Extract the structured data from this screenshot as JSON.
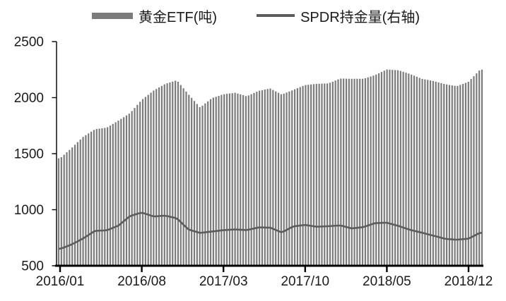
{
  "chart_data": {
    "type": "bar",
    "combo": "bar+line",
    "title": "",
    "legend_position": "top",
    "grid": false,
    "y_axis": {
      "side": "left",
      "min": 500,
      "max": 2500,
      "ticks": [
        2500,
        2000,
        1500,
        1000,
        500
      ]
    },
    "x_axis": {
      "tick_labels": [
        "2016/01",
        "2016/08",
        "2017/03",
        "2017/10",
        "2018/05",
        "2018/12"
      ],
      "tick_month_positions": [
        0,
        7,
        14,
        21,
        28,
        35
      ]
    },
    "months": [
      "2016/01",
      "2016/02",
      "2016/03",
      "2016/04",
      "2016/05",
      "2016/06",
      "2016/07",
      "2016/08",
      "2016/09",
      "2016/10",
      "2016/11",
      "2016/12",
      "2017/01",
      "2017/02",
      "2017/03",
      "2017/04",
      "2017/05",
      "2017/06",
      "2017/07",
      "2017/08",
      "2017/09",
      "2017/10",
      "2017/11",
      "2017/12",
      "2018/01",
      "2018/02",
      "2018/03",
      "2018/04",
      "2018/05",
      "2018/06",
      "2018/07",
      "2018/08",
      "2018/09",
      "2018/10",
      "2018/11",
      "2018/12",
      "2019/01"
    ],
    "series": [
      {
        "name": "黄金ETF(吨)",
        "type": "bar",
        "axis": "left",
        "values": [
          1458,
          1552,
          1652,
          1718,
          1732,
          1795,
          1862,
          1980,
          2062,
          2122,
          2155,
          2030,
          1912,
          1995,
          2030,
          2043,
          2012,
          2060,
          2082,
          2028,
          2070,
          2112,
          2123,
          2127,
          2170,
          2168,
          2168,
          2202,
          2251,
          2244,
          2210,
          2168,
          2148,
          2120,
          2102,
          2142,
          2250
        ]
      },
      {
        "name": "SPDR持金量(右轴)",
        "type": "line",
        "axis": "right",
        "values": [
          650,
          690,
          745,
          812,
          816,
          858,
          944,
          975,
          940,
          947,
          924,
          823,
          793,
          805,
          818,
          824,
          818,
          842,
          840,
          797,
          852,
          864,
          848,
          853,
          860,
          833,
          845,
          881,
          884,
          855,
          820,
          795,
          768,
          740,
          732,
          742,
          795
        ]
      }
    ],
    "colors": {
      "bar": "#7b7b7b",
      "line": "#5c5c5c",
      "axis": "#000000",
      "text": "#1a1a1a"
    }
  }
}
